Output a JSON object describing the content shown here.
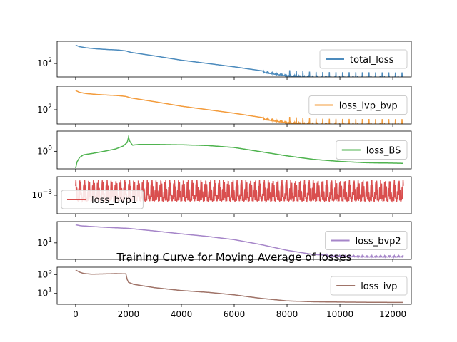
{
  "figure": {
    "title": "Training Curve for Moving Average of losses"
  },
  "chart_data": [
    {
      "type": "line",
      "log_y": true,
      "legend": "total_loss",
      "legend_loc": "right",
      "color": "#4c8bbd",
      "xlim": [
        -700,
        12700
      ],
      "ylim": [
        4,
        20000
      ],
      "yticks": [
        {
          "value": 100,
          "label": "10^2"
        }
      ],
      "xticks": [
        0,
        2000,
        4000,
        6000,
        8000,
        10000,
        12000
      ],
      "series": [
        {
          "name": "total_loss",
          "x": [
            0,
            150,
            400,
            800,
            1200,
            1600,
            1900,
            2100,
            3000,
            4000,
            5000,
            6000,
            7000,
            8000,
            9000,
            10000,
            11000,
            12000,
            12400
          ],
          "y": [
            8000,
            5500,
            4200,
            3300,
            2800,
            2500,
            2000,
            1400,
            600,
            220,
            100,
            45,
            18,
            7,
            4.5,
            4.2,
            4.1,
            4.0,
            4.0
          ]
        }
      ],
      "oscillation": {
        "start": 7100,
        "low_factor": 0.7,
        "high_factor": 1.0,
        "spikes": [
          {
            "start": 8000,
            "factor": 3.0
          }
        ]
      }
    },
    {
      "type": "line",
      "log_y": true,
      "legend": "loss_ivp_bvp",
      "legend_loc": "right",
      "color": "#f39c3d",
      "xlim": [
        -700,
        12700
      ],
      "ylim": [
        4,
        20000
      ],
      "yticks": [
        {
          "value": 100,
          "label": "10^2"
        }
      ],
      "xticks": [
        0,
        2000,
        4000,
        6000,
        8000,
        10000,
        12000
      ],
      "series": [
        {
          "name": "loss_ivp_bvp",
          "x": [
            0,
            150,
            400,
            800,
            1200,
            1600,
            1900,
            2100,
            3000,
            4000,
            5000,
            6000,
            7000,
            8000,
            9000,
            10000,
            11000,
            12000,
            12400
          ],
          "y": [
            7500,
            5000,
            3800,
            3100,
            2700,
            2400,
            2000,
            1400,
            600,
            220,
            100,
            45,
            18,
            7,
            4.5,
            4.2,
            4.1,
            4.0,
            4.0
          ]
        }
      ],
      "oscillation": {
        "start": 7100,
        "low_factor": 0.7,
        "high_factor": 1.0,
        "spikes": [
          {
            "start": 8000,
            "factor": 3.0
          }
        ]
      }
    },
    {
      "type": "line",
      "log_y": true,
      "legend": "loss_BS",
      "legend_loc": "right",
      "color": "#4fb34f",
      "xlim": [
        -700,
        12700
      ],
      "ylim": [
        0.01,
        200
      ],
      "yticks": [
        {
          "value": 1,
          "label": "10^0"
        }
      ],
      "xticks": [
        0,
        2000,
        4000,
        6000,
        8000,
        10000,
        12000
      ],
      "series": [
        {
          "name": "loss_BS",
          "x": [
            0,
            50,
            150,
            300,
            600,
            1000,
            1500,
            1800,
            1950,
            2000,
            2050,
            2150,
            2400,
            3000,
            4000,
            5000,
            6000,
            7000,
            8000,
            9000,
            10000,
            11000,
            12000,
            12400
          ],
          "y": [
            0.012,
            0.06,
            0.2,
            0.4,
            0.55,
            0.9,
            1.8,
            4,
            10,
            40,
            13,
            5,
            6,
            6,
            5.5,
            4.5,
            2.7,
            0.9,
            0.3,
            0.12,
            0.07,
            0.05,
            0.045,
            0.043
          ]
        }
      ]
    },
    {
      "type": "line",
      "log_y": true,
      "legend": "loss_bvp1",
      "legend_loc": "left",
      "color": "#d94f4f",
      "xlim": [
        -700,
        12700
      ],
      "ylim": [
        0.0002,
        0.005
      ],
      "yticks": [
        {
          "value": 0.001,
          "label": "10^-3"
        }
      ],
      "xticks": [
        0,
        2000,
        4000,
        6000,
        8000,
        10000,
        12000
      ],
      "series": [
        {
          "name": "loss_bvp1",
          "x": [
            0,
            12400
          ],
          "y": [
            0.0015,
            0.0015
          ]
        }
      ],
      "oscillation": {
        "start": 0,
        "low_factor": 0.4,
        "high_factor": 2.6
      }
    },
    {
      "type": "line",
      "log_y": true,
      "legend": "loss_bvp2",
      "legend_loc": "right",
      "color": "#a686c9",
      "xlim": [
        -700,
        12700
      ],
      "ylim": [
        0.28,
        1000
      ],
      "yticks": [
        {
          "value": 10,
          "label": "10^1"
        }
      ],
      "xticks": [
        0,
        2000,
        4000,
        6000,
        8000,
        10000,
        12000
      ],
      "series": [
        {
          "name": "loss_bvp2",
          "x": [
            0,
            200,
            1000,
            2000,
            3000,
            4000,
            5000,
            6000,
            7000,
            8000,
            9000,
            10000,
            11000,
            12000,
            12400
          ],
          "y": [
            500,
            400,
            300,
            230,
            130,
            70,
            40,
            20,
            7,
            2,
            0.8,
            0.6,
            0.55,
            0.55,
            0.55
          ]
        }
      ],
      "oscillation": {
        "start": 9500,
        "low_factor": 0.85,
        "high_factor": 1.15
      }
    },
    {
      "type": "line",
      "log_y": true,
      "legend": "loss_ivp",
      "legend_loc": "right",
      "color": "#a07469",
      "xlim": [
        -700,
        12700
      ],
      "ylim": [
        0.7,
        6000
      ],
      "yticks": [
        {
          "value": 1000,
          "label": "10^3"
        },
        {
          "value": 10,
          "label": "10^1"
        }
      ],
      "xticks": [
        0,
        2000,
        4000,
        6000,
        8000,
        10000,
        12000
      ],
      "xticklabels": [
        "0",
        "2000",
        "4000",
        "6000",
        "8000",
        "10000",
        "12000"
      ],
      "series": [
        {
          "name": "loss_ivp",
          "x": [
            0,
            150,
            300,
            600,
            1000,
            1500,
            1900,
            1950,
            2000,
            2200,
            3000,
            4000,
            5000,
            6000,
            7000,
            8000,
            9000,
            10000,
            11000,
            12000,
            12400
          ],
          "y": [
            3000,
            1800,
            1300,
            1100,
            1150,
            1250,
            1200,
            300,
            150,
            90,
            40,
            20,
            13,
            7,
            3,
            1.6,
            1.3,
            1.2,
            1.15,
            1.1,
            1.1
          ]
        }
      ]
    }
  ]
}
